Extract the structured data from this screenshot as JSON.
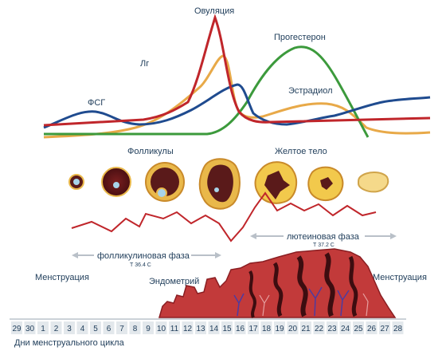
{
  "labels": {
    "ovulation": "Овуляция",
    "lh": "Лг",
    "fsh": "ФСГ",
    "progesterone": "Прогестерон",
    "estradiol": "Эстрадиол",
    "follicles": "Фолликулы",
    "corpus_luteum": "Желтое тело",
    "follicular_phase": "фолликулиновая фаза",
    "follicular_temp": "Т 36.4 С",
    "luteal_phase": "лютеиновая фаза",
    "luteal_temp": "Т 37.2 С",
    "menstruation_left": "Менструация",
    "endometrium": "Эндометрий",
    "menstruation_right": "Менструация",
    "axis_title": "Дни менструального цикла"
  },
  "days": [
    "29",
    "30",
    "1",
    "2",
    "3",
    "4",
    "5",
    "6",
    "7",
    "8",
    "9",
    "10",
    "11",
    "12",
    "13",
    "14",
    "15",
    "16",
    "17",
    "18",
    "19",
    "20",
    "21",
    "22",
    "23",
    "24",
    "25",
    "26",
    "27",
    "28"
  ],
  "colors": {
    "lh": "#c0262b",
    "fsh": "#1f4b8f",
    "progesterone": "#3c9a3c",
    "estradiol": "#e8a948",
    "temperature": "#c0262b",
    "text": "#1f3d5a",
    "arrow": "#b9c0c8",
    "endometrium": "#c23a3a"
  }
}
